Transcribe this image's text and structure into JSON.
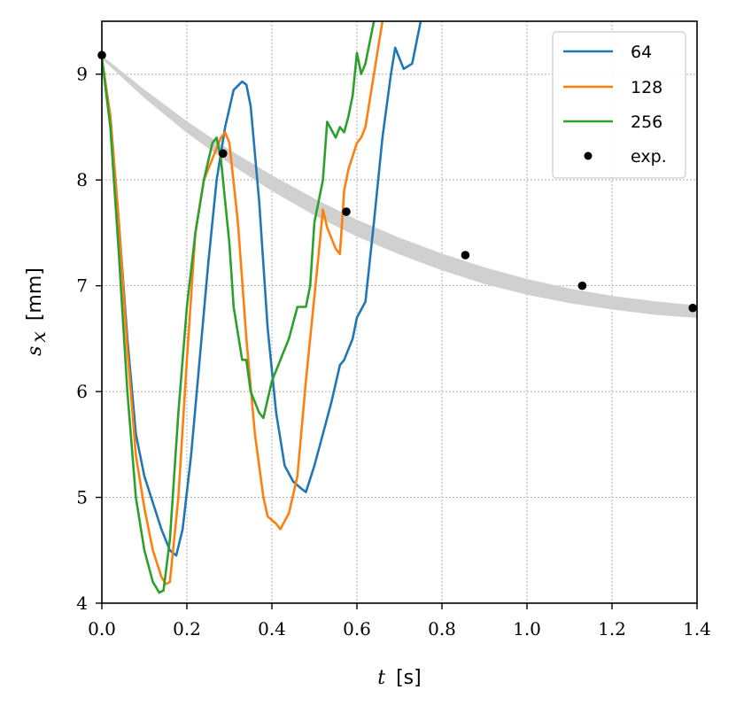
{
  "chart_data": {
    "type": "line",
    "xlabel_symbol": "t",
    "xlabel_unit": "[s]",
    "ylabel_symbol": "s",
    "ylabel_subscript": "x",
    "ylabel_unit": "[mm]",
    "xlim": [
      0.0,
      1.4
    ],
    "ylim": [
      4,
      9.5
    ],
    "xticks": [
      0.0,
      0.2,
      0.4,
      0.6,
      0.8,
      1.0,
      1.2,
      1.4
    ],
    "xtick_labels": [
      "0.0",
      "0.2",
      "0.4",
      "0.6",
      "0.8",
      "1.0",
      "1.2",
      "1.4"
    ],
    "yticks": [
      4,
      5,
      6,
      7,
      8,
      9
    ],
    "ytick_labels": [
      "4",
      "5",
      "6",
      "7",
      "8",
      "9"
    ],
    "grid": true,
    "legend_position": "top-right",
    "band": {
      "color": "#d0d0d0",
      "upper": [
        [
          0.0,
          9.17
        ],
        [
          0.1,
          8.85
        ],
        [
          0.2,
          8.55
        ],
        [
          0.3,
          8.28
        ],
        [
          0.4,
          8.04
        ],
        [
          0.5,
          7.82
        ],
        [
          0.6,
          7.62
        ],
        [
          0.7,
          7.45
        ],
        [
          0.8,
          7.3
        ],
        [
          0.9,
          7.17
        ],
        [
          1.0,
          7.06
        ],
        [
          1.1,
          6.97
        ],
        [
          1.2,
          6.9
        ],
        [
          1.3,
          6.85
        ],
        [
          1.4,
          6.81
        ]
      ],
      "lower": [
        [
          0.0,
          9.15
        ],
        [
          0.1,
          8.78
        ],
        [
          0.2,
          8.45
        ],
        [
          0.3,
          8.16
        ],
        [
          0.4,
          7.9
        ],
        [
          0.5,
          7.67
        ],
        [
          0.6,
          7.47
        ],
        [
          0.7,
          7.3
        ],
        [
          0.8,
          7.15
        ],
        [
          0.9,
          7.02
        ],
        [
          1.0,
          6.92
        ],
        [
          1.1,
          6.84
        ],
        [
          1.2,
          6.78
        ],
        [
          1.3,
          6.73
        ],
        [
          1.4,
          6.7
        ]
      ]
    },
    "series": [
      {
        "name": "64",
        "color": "#1f77b4",
        "x": [
          0.0,
          0.02,
          0.04,
          0.06,
          0.08,
          0.1,
          0.12,
          0.14,
          0.16,
          0.175,
          0.19,
          0.21,
          0.23,
          0.25,
          0.27,
          0.29,
          0.31,
          0.33,
          0.34,
          0.35,
          0.37,
          0.39,
          0.41,
          0.43,
          0.45,
          0.47,
          0.48,
          0.5,
          0.52,
          0.54,
          0.56,
          0.57,
          0.59,
          0.6,
          0.62,
          0.64,
          0.66,
          0.68,
          0.69,
          0.71,
          0.73,
          0.75
        ],
        "values": [
          9.15,
          8.6,
          7.6,
          6.5,
          5.6,
          5.2,
          4.95,
          4.7,
          4.5,
          4.45,
          4.7,
          5.4,
          6.3,
          7.2,
          8.0,
          8.5,
          8.85,
          8.93,
          8.9,
          8.7,
          7.8,
          6.6,
          5.8,
          5.3,
          5.15,
          5.08,
          5.05,
          5.3,
          5.6,
          5.9,
          6.25,
          6.3,
          6.5,
          6.7,
          6.85,
          7.6,
          8.4,
          9.0,
          9.25,
          9.05,
          9.1,
          9.5
        ]
      },
      {
        "name": "128",
        "color": "#ff7f0e",
        "x": [
          0.0,
          0.02,
          0.04,
          0.06,
          0.08,
          0.1,
          0.12,
          0.14,
          0.15,
          0.16,
          0.18,
          0.2,
          0.22,
          0.24,
          0.26,
          0.28,
          0.29,
          0.3,
          0.32,
          0.34,
          0.36,
          0.38,
          0.39,
          0.41,
          0.42,
          0.44,
          0.46,
          0.48,
          0.5,
          0.51,
          0.52,
          0.53,
          0.55,
          0.56,
          0.57,
          0.58,
          0.6,
          0.61,
          0.62,
          0.64,
          0.66
        ],
        "values": [
          9.15,
          8.6,
          7.6,
          6.4,
          5.4,
          4.9,
          4.5,
          4.25,
          4.18,
          4.2,
          5.0,
          6.3,
          7.5,
          8.0,
          8.2,
          8.4,
          8.45,
          8.35,
          7.6,
          6.5,
          5.6,
          5.0,
          4.82,
          4.75,
          4.7,
          4.85,
          5.2,
          6.1,
          6.9,
          7.3,
          7.72,
          7.55,
          7.35,
          7.3,
          7.9,
          8.1,
          8.35,
          8.4,
          8.5,
          9.0,
          9.5
        ]
      },
      {
        "name": "256",
        "color": "#2ca02c",
        "x": [
          0.0,
          0.02,
          0.04,
          0.06,
          0.08,
          0.1,
          0.12,
          0.135,
          0.145,
          0.16,
          0.18,
          0.2,
          0.22,
          0.24,
          0.26,
          0.27,
          0.28,
          0.3,
          0.31,
          0.33,
          0.34,
          0.35,
          0.36,
          0.37,
          0.38,
          0.4,
          0.42,
          0.44,
          0.46,
          0.48,
          0.49,
          0.5,
          0.52,
          0.53,
          0.55,
          0.56,
          0.57,
          0.58,
          0.59,
          0.6,
          0.61,
          0.62,
          0.63,
          0.64
        ],
        "values": [
          9.15,
          8.5,
          7.3,
          6.0,
          5.0,
          4.5,
          4.2,
          4.1,
          4.12,
          4.6,
          5.8,
          6.8,
          7.5,
          8.0,
          8.35,
          8.4,
          8.2,
          7.4,
          6.8,
          6.3,
          6.3,
          6.0,
          5.9,
          5.8,
          5.75,
          6.1,
          6.3,
          6.5,
          6.8,
          6.8,
          7.0,
          7.6,
          8.0,
          8.55,
          8.4,
          8.5,
          8.45,
          8.6,
          8.8,
          9.2,
          9.0,
          9.1,
          9.3,
          9.5
        ]
      },
      {
        "name": "exp.",
        "type": "scatter",
        "color": "#000000",
        "x": [
          0.0,
          0.285,
          0.575,
          0.855,
          1.13,
          1.39
        ],
        "values": [
          9.18,
          8.25,
          7.7,
          7.29,
          7.0,
          6.79
        ]
      }
    ]
  }
}
